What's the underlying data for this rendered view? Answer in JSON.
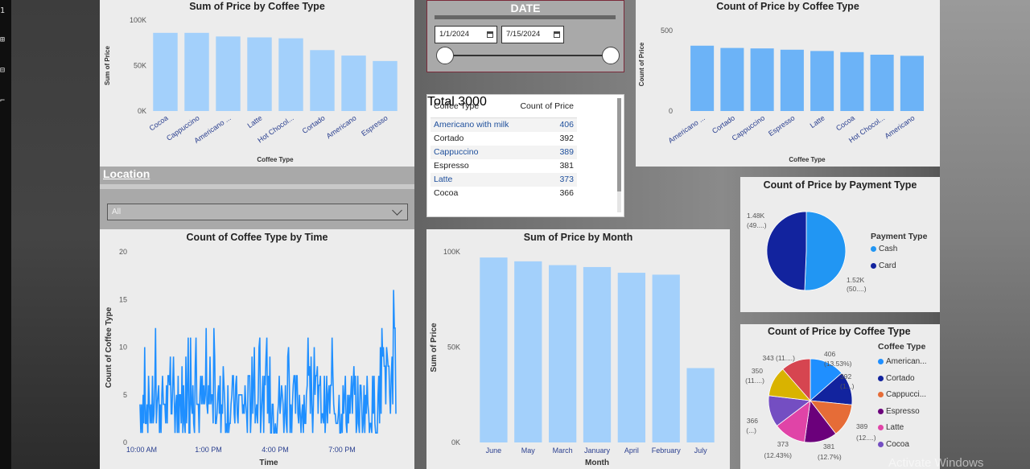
{
  "colors": {
    "bar_light": "#a3d0fb",
    "bar_mid": "#6cb3f7",
    "line": "#1f8fff",
    "cash": "#2196f3",
    "card": "#12239e"
  },
  "sidebar_glyphs": [
    "1",
    "⊞",
    "⊟",
    "⌐"
  ],
  "watermark": "Activate Windows",
  "chart_data": [
    {
      "id": "sum-price-by-coffee-type",
      "type": "bar",
      "title": "Sum of Price by Coffee Type",
      "xlabel": "Coffee Type",
      "ylabel": "Sum of Price",
      "categories": [
        "Cocoa",
        "Cappuccino",
        "Americano ...",
        "Latte",
        "Hot Chocol...",
        "Cortado",
        "Americano",
        "Espresso"
      ],
      "values": [
        86000,
        86000,
        82000,
        81000,
        80000,
        67000,
        61000,
        55000
      ],
      "ylim": [
        0,
        100000
      ],
      "yticks": [
        "0K",
        "50K",
        "100K"
      ]
    },
    {
      "id": "count-price-by-coffee-type",
      "type": "bar",
      "title": "Count of Price by Coffee Type",
      "xlabel": "Coffee Type",
      "ylabel": "Count of Price",
      "categories": [
        "Americano ...",
        "Cortado",
        "Cappuccino",
        "Espresso",
        "Latte",
        "Cocoa",
        "Hot Chocol...",
        "Americano"
      ],
      "values": [
        406,
        392,
        389,
        381,
        373,
        366,
        350,
        343
      ],
      "ylim": [
        0,
        600
      ],
      "yticks": [
        "0",
        "500"
      ]
    },
    {
      "id": "count-coffee-type-by-time",
      "type": "line",
      "title": "Count of Coffee Type by Time",
      "xlabel": "Time",
      "ylabel": "Count of Coffee Type",
      "xticks": [
        "10:00 AM",
        "1:00 PM",
        "4:00 PM",
        "7:00 PM"
      ],
      "yticks": [
        "0",
        "5",
        "10",
        "15",
        "20"
      ],
      "ylim": [
        0,
        20
      ]
    },
    {
      "id": "sum-price-by-month",
      "type": "bar",
      "title": "Sum of Price by Month",
      "xlabel": "Month",
      "ylabel": "Sum of Price",
      "categories": [
        "June",
        "May",
        "March",
        "January",
        "April",
        "February",
        "July"
      ],
      "values": [
        97000,
        95000,
        93000,
        92000,
        89000,
        88000,
        39000
      ],
      "ylim": [
        0,
        100000
      ],
      "yticks": [
        "0K",
        "50K",
        "100K"
      ]
    },
    {
      "id": "count-price-by-payment-type",
      "type": "pie",
      "title": "Count of Price by Payment Type",
      "legend_title": "Payment Type",
      "slices": [
        {
          "name": "Cash",
          "value": 1520,
          "label1": "1.52K",
          "label2": "(50....)"
        },
        {
          "name": "Card",
          "value": 1480,
          "label1": "1.48K",
          "label2": "(49....)"
        }
      ]
    },
    {
      "id": "count-price-by-coffee-type-pie",
      "type": "pie",
      "title": "Count of Price by Coffee Type",
      "legend_title": "Coffee Type",
      "legend": [
        "American...",
        "Cortado",
        "Cappucci...",
        "Espresso",
        "Latte",
        "Cocoa"
      ],
      "slices": [
        {
          "name": "Americano with milk",
          "value": 406,
          "label1": "406",
          "label2": "(13.53%)"
        },
        {
          "name": "Cortado",
          "value": 392,
          "label1": "392",
          "label2": "(1...)"
        },
        {
          "name": "Cappuccino",
          "value": 389,
          "label1": "389",
          "label2": "(12....)"
        },
        {
          "name": "Espresso",
          "value": 381,
          "label1": "381",
          "label2": "(12.7%)"
        },
        {
          "name": "Latte",
          "value": 373,
          "label1": "373",
          "label2": "(12.43%)"
        },
        {
          "name": "Cocoa",
          "value": 366,
          "label1": "366",
          "label2": "(...)"
        },
        {
          "name": "Hot Chocolate",
          "value": 350,
          "label1": "350",
          "label2": "(11....)"
        },
        {
          "name": "Americano",
          "value": 343,
          "label1": "343 (11....)",
          "label2": ""
        }
      ],
      "colors": [
        "#1f8fff",
        "#12239e",
        "#e66c37",
        "#6b007b",
        "#e044a7",
        "#744ec2",
        "#d9b300",
        "#d64550"
      ]
    }
  ],
  "date_slicer": {
    "title": "DATE",
    "start": "1/1/2024",
    "end": "7/15/2024"
  },
  "table": {
    "headers": [
      "Coffee Type",
      "Count of Price"
    ],
    "rows": [
      [
        "Americano with milk",
        "406"
      ],
      [
        "Cortado",
        "392"
      ],
      [
        "Cappuccino",
        "389"
      ],
      [
        "Espresso",
        "381"
      ],
      [
        "Latte",
        "373"
      ],
      [
        "Cocoa",
        "366"
      ]
    ],
    "total_label": "Total",
    "total_value": "3000"
  },
  "location_slicer": {
    "title": "Location",
    "value": "All"
  }
}
